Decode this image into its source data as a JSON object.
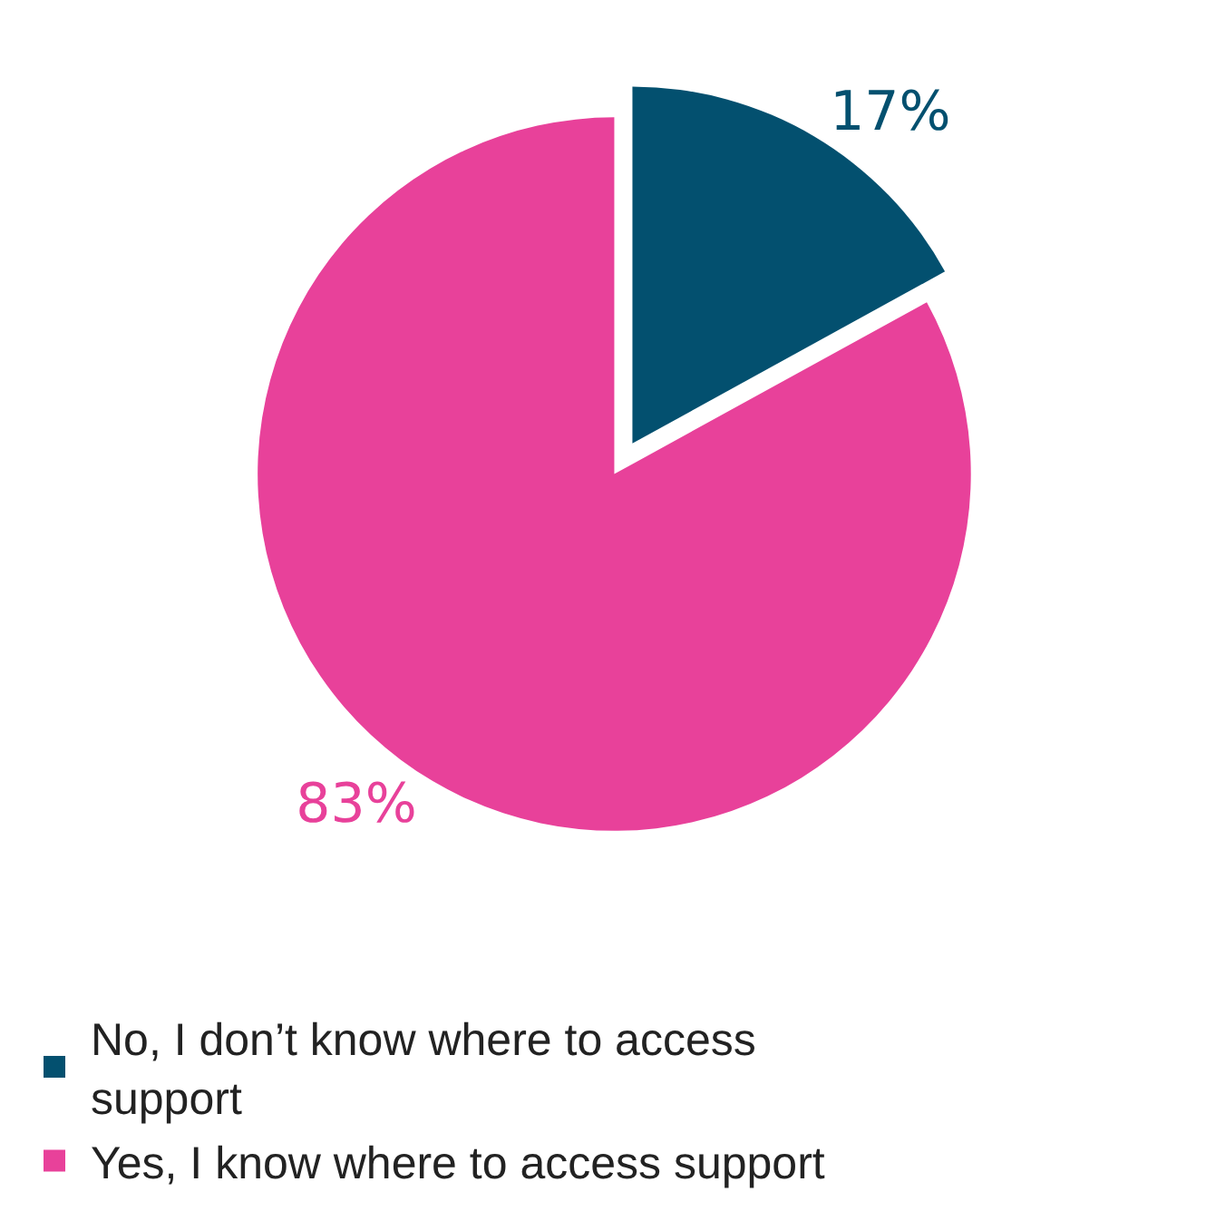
{
  "chart_data": {
    "type": "pie",
    "categories": [
      "No, I don’t know where to access support",
      "Yes, I know where to access support"
    ],
    "values": [
      17,
      83
    ],
    "colors": [
      "#03506f",
      "#e8419a"
    ],
    "value_labels": [
      "17%",
      "83%"
    ],
    "legend": "bottom"
  }
}
